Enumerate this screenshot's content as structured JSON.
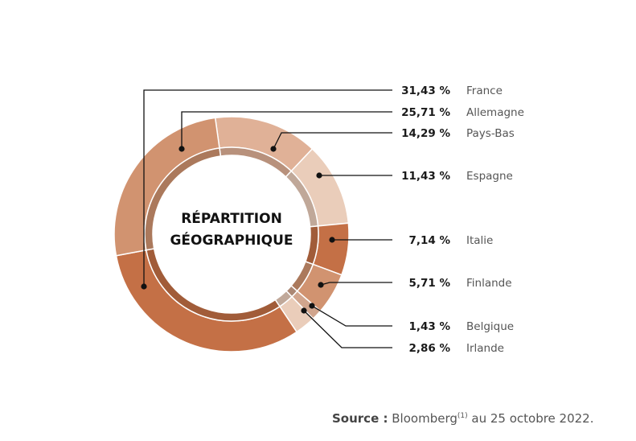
{
  "chart_data": {
    "type": "pie",
    "title_lines": [
      "RÉPARTITION",
      "GÉOGRAPHIQUE"
    ],
    "categories": [
      "France",
      "Allemagne",
      "Pays-Bas",
      "Espagne",
      "Italie",
      "Finlande",
      "Belgique",
      "Irlande"
    ],
    "values": [
      31.43,
      25.71,
      14.29,
      11.43,
      7.14,
      5.71,
      1.43,
      2.86
    ],
    "value_labels": [
      "31,43 %",
      "25,71 %",
      "14,29 %",
      "11,43 %",
      "7,14 %",
      "5,71 %",
      "1,43 %",
      "2,86 %"
    ],
    "colors": [
      "#C47046",
      "#D19370",
      "#E0B197",
      "#EACDBA",
      "#C47046",
      "#D19370",
      "#D1A58D",
      "#EACDBA"
    ],
    "donut": true,
    "legend": "right"
  },
  "source": {
    "label": "Source :",
    "text": "Bloomberg",
    "sup": "(1)",
    "suffix": " au 25 octobre 2022."
  }
}
